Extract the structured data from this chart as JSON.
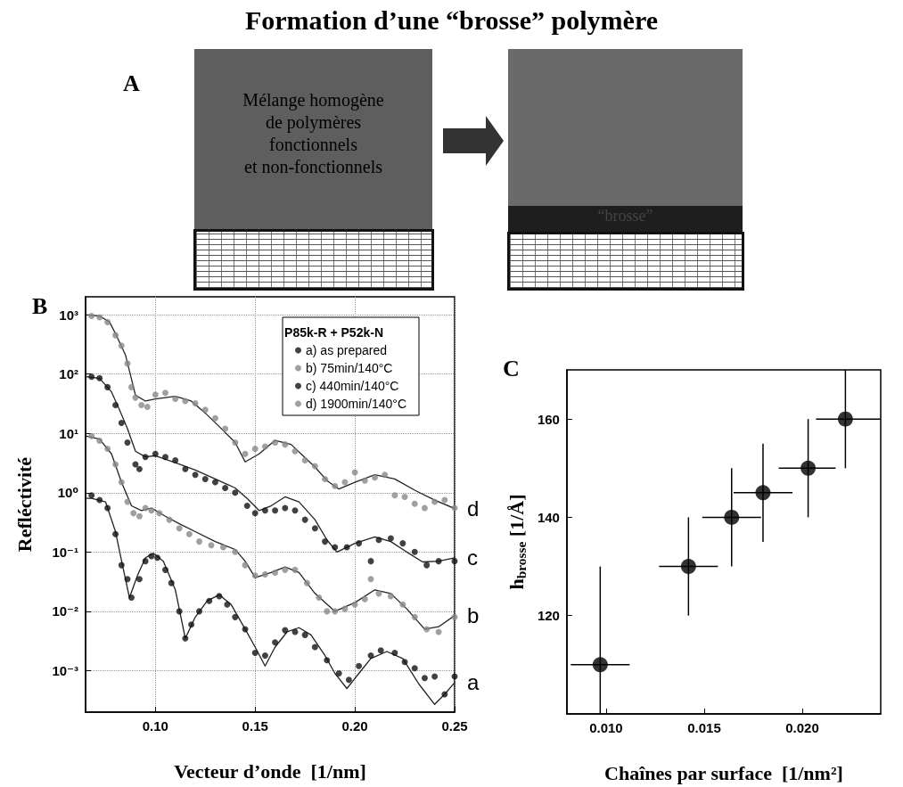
{
  "chart_data": [
    {
      "type": "other",
      "title": "Formation d’une “brosse” polymère",
      "annotations": [
        "A",
        "Mélange homogène\nde polymères\nfonctionnels\net non-fonctionnels",
        "“brosse”"
      ]
    },
    {
      "type": "scatter",
      "xlabel": "Vecteur d’onde  [1/nm]",
      "ylabel": "Refléctivité",
      "legend_title": "P85k-R + P52k-N",
      "legend": "top right",
      "grid": true,
      "log": "y",
      "marker": "circle",
      "xlim": [
        0.065,
        0.25
      ],
      "xticks": [
        {
          "value": 0.1,
          "label": "0.10"
        },
        {
          "value": 0.15,
          "label": "0.15"
        },
        {
          "value": 0.2,
          "label": "0.20"
        },
        {
          "value": 0.25,
          "label": "0.25"
        }
      ],
      "ylim": [
        0.0002,
        2000
      ],
      "yticks": [
        {
          "value": 0.001,
          "label": "10⁻³"
        },
        {
          "value": 0.01,
          "label": "10⁻²"
        },
        {
          "value": 0.1,
          "label": "10⁻¹"
        },
        {
          "value": 1,
          "label": "10⁰"
        },
        {
          "value": 10,
          "label": "10¹"
        },
        {
          "value": 100,
          "label": "10²"
        },
        {
          "value": 1000,
          "label": "10³"
        }
      ],
      "annotations": [
        "B",
        "d",
        "c",
        "b",
        "a"
      ],
      "series": [
        {
          "name": "a) as prepared",
          "color": "#111111",
          "x": [
            0.068,
            0.072,
            0.076,
            0.08,
            0.083,
            0.086,
            0.088,
            0.092,
            0.095,
            0.098,
            0.101,
            0.105,
            0.108,
            0.112,
            0.115,
            0.118,
            0.122,
            0.127,
            0.132,
            0.136,
            0.14,
            0.145,
            0.15,
            0.155,
            0.16,
            0.165,
            0.17,
            0.175,
            0.18,
            0.186,
            0.192,
            0.197,
            0.202,
            0.208,
            0.213,
            0.22,
            0.225,
            0.23,
            0.235,
            0.24,
            0.245,
            0.25
          ],
          "values": [
            0.9,
            0.75,
            0.55,
            0.2,
            0.06,
            0.035,
            0.017,
            0.035,
            0.07,
            0.085,
            0.08,
            0.05,
            0.03,
            0.01,
            0.0035,
            0.006,
            0.01,
            0.015,
            0.018,
            0.013,
            0.008,
            0.005,
            0.002,
            0.0018,
            0.003,
            0.0048,
            0.0045,
            0.004,
            0.0025,
            0.0015,
            0.0009,
            0.0007,
            0.0012,
            0.0018,
            0.0022,
            0.002,
            0.0014,
            0.0011,
            0.00075,
            0.0008,
            0.0004,
            0.0008
          ]
        },
        {
          "name": "b) 75min/140°C",
          "color": "#888888",
          "x": [
            0.068,
            0.072,
            0.076,
            0.08,
            0.083,
            0.086,
            0.089,
            0.092,
            0.095,
            0.098,
            0.102,
            0.107,
            0.112,
            0.117,
            0.122,
            0.128,
            0.134,
            0.14,
            0.145,
            0.15,
            0.155,
            0.16,
            0.165,
            0.17,
            0.176,
            0.182,
            0.186,
            0.19,
            0.195,
            0.2,
            0.205,
            0.208,
            0.212,
            0.218,
            0.224,
            0.23,
            0.236,
            0.242,
            0.25
          ],
          "values": [
            9,
            7.5,
            5.5,
            3,
            1.5,
            0.7,
            0.45,
            0.4,
            0.55,
            0.5,
            0.45,
            0.35,
            0.25,
            0.2,
            0.15,
            0.13,
            0.12,
            0.1,
            0.06,
            0.04,
            0.042,
            0.045,
            0.05,
            0.05,
            0.03,
            0.017,
            0.01,
            0.01,
            0.011,
            0.013,
            0.016,
            0.035,
            0.02,
            0.018,
            0.013,
            0.008,
            0.005,
            0.0045,
            0.008
          ]
        },
        {
          "name": "c) 440min/140°C",
          "color": "#111111",
          "x": [
            0.068,
            0.072,
            0.076,
            0.08,
            0.083,
            0.086,
            0.09,
            0.092,
            0.095,
            0.1,
            0.105,
            0.11,
            0.115,
            0.12,
            0.125,
            0.13,
            0.135,
            0.14,
            0.146,
            0.15,
            0.155,
            0.16,
            0.165,
            0.17,
            0.175,
            0.18,
            0.185,
            0.19,
            0.196,
            0.202,
            0.208,
            0.212,
            0.218,
            0.224,
            0.23,
            0.236,
            0.242,
            0.25
          ],
          "values": [
            90,
            85,
            60,
            30,
            15,
            7,
            3,
            2.5,
            4,
            4.5,
            4,
            3.5,
            2.5,
            2,
            1.7,
            1.5,
            1.2,
            1,
            0.6,
            0.45,
            0.5,
            0.5,
            0.55,
            0.5,
            0.35,
            0.25,
            0.15,
            0.12,
            0.12,
            0.14,
            0.07,
            0.16,
            0.17,
            0.14,
            0.1,
            0.06,
            0.07,
            0.07
          ]
        },
        {
          "name": "d) 1900min/140°C",
          "color": "#888888",
          "x": [
            0.068,
            0.072,
            0.076,
            0.08,
            0.083,
            0.086,
            0.088,
            0.09,
            0.093,
            0.096,
            0.1,
            0.105,
            0.11,
            0.115,
            0.12,
            0.125,
            0.13,
            0.135,
            0.14,
            0.145,
            0.15,
            0.155,
            0.16,
            0.165,
            0.17,
            0.175,
            0.18,
            0.185,
            0.19,
            0.195,
            0.2,
            0.205,
            0.21,
            0.215,
            0.22,
            0.225,
            0.23,
            0.235,
            0.24,
            0.245,
            0.25
          ],
          "values": [
            950,
            900,
            750,
            450,
            300,
            150,
            60,
            40,
            30,
            28,
            45,
            48,
            38,
            35,
            32,
            25,
            18,
            12,
            7,
            4.5,
            5.5,
            6,
            7,
            6.5,
            5,
            3.5,
            2.8,
            1.7,
            1.3,
            1.5,
            2.2,
            1.6,
            1.8,
            2,
            0.9,
            0.85,
            0.65,
            0.55,
            0.7,
            0.75,
            0.55
          ]
        },
        {
          "type": "line",
          "marker": "none",
          "line_style": "solid",
          "color": "#222222",
          "x": [
            0.065,
            0.068,
            0.075,
            0.08,
            0.084,
            0.087,
            0.091,
            0.095,
            0.099,
            0.104,
            0.11,
            0.115,
            0.12,
            0.126,
            0.132,
            0.138,
            0.145,
            0.15,
            0.155,
            0.16,
            0.166,
            0.172,
            0.178,
            0.185,
            0.19,
            0.196,
            0.202,
            0.208,
            0.216,
            0.224,
            0.232,
            0.24,
            0.245,
            0.25
          ],
          "values": [
            0.8,
            0.8,
            0.7,
            0.22,
            0.05,
            0.017,
            0.04,
            0.08,
            0.095,
            0.07,
            0.023,
            0.0035,
            0.008,
            0.015,
            0.019,
            0.013,
            0.005,
            0.0025,
            0.0012,
            0.0025,
            0.0045,
            0.0053,
            0.004,
            0.0018,
            0.0009,
            0.0005,
            0.0009,
            0.0016,
            0.0021,
            0.0016,
            0.0006,
            0.00027,
            0.0004,
            0.00063
          ]
        },
        {
          "type": "line",
          "marker": "none",
          "line_style": "solid",
          "color": "#222222",
          "x": [
            0.065,
            0.072,
            0.078,
            0.083,
            0.088,
            0.093,
            0.098,
            0.105,
            0.112,
            0.12,
            0.13,
            0.14,
            0.145,
            0.15,
            0.158,
            0.165,
            0.172,
            0.18,
            0.19,
            0.2,
            0.21,
            0.218,
            0.226,
            0.235,
            0.242,
            0.25
          ],
          "values": [
            9,
            8,
            4.5,
            1.5,
            0.6,
            0.5,
            0.55,
            0.4,
            0.3,
            0.22,
            0.15,
            0.11,
            0.07,
            0.037,
            0.045,
            0.056,
            0.045,
            0.02,
            0.01,
            0.014,
            0.023,
            0.02,
            0.011,
            0.005,
            0.0055,
            0.0085
          ]
        },
        {
          "type": "line",
          "marker": "none",
          "line_style": "solid",
          "color": "#222222",
          "x": [
            0.065,
            0.072,
            0.078,
            0.082,
            0.086,
            0.09,
            0.095,
            0.1,
            0.11,
            0.12,
            0.13,
            0.14,
            0.146,
            0.152,
            0.158,
            0.165,
            0.172,
            0.18,
            0.186,
            0.191,
            0.2,
            0.21,
            0.218,
            0.226,
            0.234,
            0.242,
            0.25
          ],
          "values": [
            90,
            85,
            50,
            25,
            12,
            5,
            4,
            4.2,
            3.2,
            2.4,
            1.7,
            1.2,
            0.8,
            0.5,
            0.6,
            0.85,
            0.7,
            0.35,
            0.16,
            0.1,
            0.14,
            0.18,
            0.15,
            0.1,
            0.068,
            0.07,
            0.08
          ]
        },
        {
          "type": "line",
          "marker": "none",
          "line_style": "solid",
          "color": "#222222",
          "x": [
            0.065,
            0.072,
            0.077,
            0.08,
            0.085,
            0.09,
            0.095,
            0.1,
            0.11,
            0.118,
            0.125,
            0.132,
            0.14,
            0.145,
            0.152,
            0.16,
            0.168,
            0.18,
            0.186,
            0.192,
            0.2,
            0.21,
            0.22,
            0.23,
            0.24,
            0.25
          ],
          "values": [
            1000,
            950,
            750,
            480,
            210,
            44,
            35,
            38,
            42,
            35,
            22,
            13,
            7,
            3.3,
            4.5,
            7.6,
            6.5,
            2.7,
            1.6,
            1.15,
            1.5,
            2,
            1.7,
            1.1,
            0.75,
            0.54
          ]
        }
      ]
    },
    {
      "type": "scatter",
      "xlabel": "Chaînes par surface  [1/nm²]",
      "ylabel": "h$_{brosse}$ [1/Å]",
      "marker": "circle",
      "grid": false,
      "xlim": [
        0.008,
        0.024
      ],
      "xticks": [
        {
          "value": 0.01,
          "label": "0.010"
        },
        {
          "value": 0.015,
          "label": "0.015"
        },
        {
          "value": 0.02,
          "label": "0.020"
        }
      ],
      "ylim": [
        100,
        170
      ],
      "yticks": [
        120,
        140,
        160
      ],
      "annotations": [
        "C"
      ],
      "series": [
        {
          "color": "#000000",
          "x": [
            0.0097,
            0.0142,
            0.0164,
            0.018,
            0.0203,
            0.0222
          ],
          "values": [
            110,
            130,
            140,
            145,
            150,
            160
          ],
          "errors": [
            [
              100,
              130
            ],
            [
              120,
              140
            ],
            [
              130,
              150
            ],
            [
              135,
              155
            ],
            [
              140,
              160
            ],
            [
              150,
              170
            ]
          ],
          "xerrors": [
            [
              0.0082,
              0.0112
            ],
            [
              0.0127,
              0.0157
            ],
            [
              0.0149,
              0.0179
            ],
            [
              0.0165,
              0.0195
            ],
            [
              0.0188,
              0.0217
            ],
            [
              0.0207,
              0.024
            ]
          ]
        }
      ]
    }
  ]
}
